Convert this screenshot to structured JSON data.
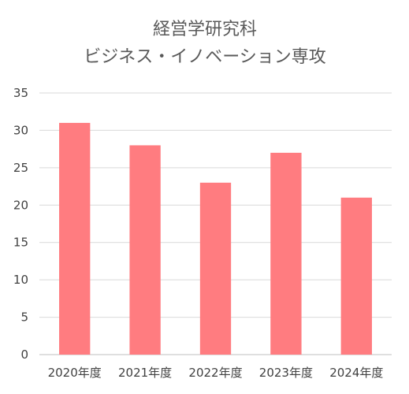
{
  "chart_data": {
    "type": "bar",
    "title": "経営学研究科",
    "subtitle": "ビジネス・イノベーション専攻",
    "categories": [
      "2020年度",
      "2021年度",
      "2022年度",
      "2023年度",
      "2024年度"
    ],
    "values": [
      31,
      28,
      23,
      27,
      21
    ],
    "ylim": [
      0,
      35
    ],
    "yticks": [
      0,
      5,
      10,
      15,
      20,
      25,
      30,
      35
    ],
    "grid": true,
    "legend": "none",
    "bar_color": "#ff7c80"
  }
}
